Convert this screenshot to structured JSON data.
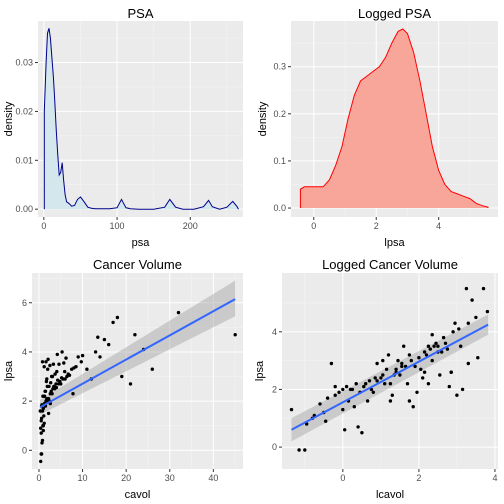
{
  "chart_data": [
    {
      "type": "area",
      "title": "PSA",
      "xlabel": "psa",
      "ylabel": "density",
      "xlim": [
        -8,
        272
      ],
      "ylim": [
        -0.0016,
        0.0385
      ],
      "xticks": [
        0,
        100,
        200
      ],
      "yticks": [
        0.0,
        0.01,
        0.02,
        0.03
      ],
      "ytick_labels": [
        "0.00",
        "0.01",
        "0.02",
        "0.03"
      ],
      "fill_color": "#d3e7ec",
      "line_color": "#00008b",
      "x": [
        0.65,
        3,
        5,
        7,
        9,
        11,
        13,
        15,
        17,
        19,
        21,
        23,
        25,
        27,
        29,
        31,
        34,
        38,
        42,
        46,
        50,
        55,
        60,
        65,
        70,
        80,
        90,
        100,
        106,
        112,
        118,
        130,
        150,
        165,
        172,
        180,
        190,
        205,
        218,
        225,
        230,
        240,
        250,
        258,
        264,
        265.9
      ],
      "y": [
        0.02,
        0.03,
        0.036,
        0.037,
        0.035,
        0.031,
        0.027,
        0.022,
        0.016,
        0.011,
        0.007,
        0.0075,
        0.0095,
        0.006,
        0.003,
        0.0015,
        0.0012,
        0.0006,
        0.0008,
        0.002,
        0.0025,
        0.0015,
        0.0004,
        0.0002,
        0.0001,
        0.0001,
        0.0001,
        0.0003,
        0.002,
        0.0003,
        0.0001,
        0.0,
        0.0,
        0.0004,
        0.002,
        0.0004,
        0.0,
        0.0,
        0.0005,
        0.0018,
        0.0005,
        0.0,
        0.0004,
        0.0016,
        0.0005,
        0.0
      ]
    },
    {
      "type": "area",
      "title": "Logged PSA",
      "xlabel": "lpsa",
      "ylabel": "density",
      "xlim": [
        -0.73,
        5.9
      ],
      "ylim": [
        -0.019,
        0.397
      ],
      "xticks": [
        0,
        2,
        4
      ],
      "yticks": [
        0.0,
        0.1,
        0.2,
        0.3
      ],
      "ytick_labels": [
        "0.0",
        "0.1",
        "0.2",
        "0.3"
      ],
      "fill_color": "#f8a59a",
      "line_color": "#ff0000",
      "x": [
        -0.43,
        -0.3,
        0,
        0.3,
        0.5,
        0.7,
        0.9,
        1.1,
        1.3,
        1.5,
        1.7,
        1.9,
        2.1,
        2.3,
        2.5,
        2.7,
        2.85,
        3.0,
        3.2,
        3.4,
        3.6,
        3.8,
        4.0,
        4.2,
        4.4,
        4.6,
        4.8,
        5.0,
        5.2,
        5.4,
        5.58
      ],
      "y": [
        0.04,
        0.045,
        0.045,
        0.045,
        0.06,
        0.09,
        0.13,
        0.19,
        0.24,
        0.27,
        0.28,
        0.29,
        0.3,
        0.32,
        0.35,
        0.375,
        0.38,
        0.37,
        0.33,
        0.27,
        0.2,
        0.13,
        0.08,
        0.05,
        0.035,
        0.03,
        0.025,
        0.02,
        0.01,
        0.005,
        0.002
      ]
    },
    {
      "type": "scatter",
      "title": "Cancer Volume",
      "xlabel": "cavol",
      "ylabel": "lpsa",
      "xlim": [
        -1.6,
        46.8
      ],
      "ylim": [
        -0.76,
        7.21
      ],
      "xticks": [
        0,
        10,
        20,
        30,
        40
      ],
      "yticks": [
        0,
        2,
        4,
        6
      ],
      "point_color": "#000000",
      "fit_color": "#3366ff",
      "ribbon_color": "#999999",
      "fit": {
        "x": [
          0.26,
          45
        ],
        "y": [
          1.75,
          6.15
        ],
        "lower": [
          1.45,
          5.45
        ],
        "upper": [
          2.05,
          6.9
        ]
      },
      "x": [
        0.4,
        0.5,
        0.6,
        0.7,
        0.8,
        1.0,
        0.9,
        1.2,
        0.5,
        0.6,
        1.1,
        0.3,
        0.8,
        1.0,
        1.5,
        0.7,
        1.3,
        2.0,
        1.6,
        2.4,
        1.8,
        2.2,
        1.1,
        0.9,
        2.6,
        3.0,
        2.8,
        1.4,
        3.2,
        3.6,
        4.0,
        2.3,
        1.9,
        3.4,
        4.5,
        5.0,
        3.9,
        2.7,
        1.7,
        4.8,
        4.3,
        5.5,
        6.0,
        5.2,
        3.1,
        2.9,
        6.4,
        7.0,
        6.7,
        3.7,
        4.1,
        5.9,
        2.0,
        7.5,
        8.0,
        1.2,
        2.5,
        3.3,
        4.6,
        5.7,
        0.8,
        1.6,
        2.1,
        6.2,
        9.0,
        10.0,
        8.5,
        11.0,
        12.0,
        7.8,
        9.7,
        14.0,
        13.0,
        16.0,
        15.0,
        18.0,
        17.0,
        13.5,
        19.0,
        21.0,
        24.0,
        26.0,
        22.0,
        32.0,
        45.0,
        0.5,
        1.0,
        2.2,
        3.5,
        4.2,
        1.3,
        1.8,
        0.6,
        2.6,
        0.4,
        1.5,
        5.3
      ],
      "y": [
        -0.45,
        -0.15,
        -0.15,
        0.3,
        0.4,
        0.8,
        1.0,
        1.1,
        1.2,
        1.3,
        1.4,
        1.6,
        1.6,
        1.7,
        1.8,
        1.85,
        1.9,
        2.0,
        2.0,
        2.0,
        2.1,
        2.1,
        2.2,
        2.2,
        2.3,
        2.3,
        2.4,
        2.4,
        2.5,
        2.5,
        2.55,
        2.6,
        2.6,
        2.6,
        2.7,
        2.7,
        2.7,
        2.75,
        2.8,
        2.8,
        2.85,
        2.9,
        2.9,
        2.95,
        3.0,
        3.0,
        3.0,
        3.05,
        3.1,
        3.1,
        3.2,
        3.2,
        3.3,
        3.3,
        3.35,
        3.4,
        3.45,
        3.5,
        3.5,
        3.55,
        3.6,
        3.6,
        3.7,
        3.75,
        3.8,
        3.85,
        3.4,
        3.3,
        2.9,
        2.3,
        3.6,
        3.8,
        4.0,
        4.3,
        4.5,
        5.4,
        5.2,
        4.6,
        3.0,
        2.7,
        4.1,
        3.3,
        4.7,
        5.6,
        4.7,
        0.7,
        1.0,
        1.5,
        2.6,
        3.9,
        2.2,
        2.9,
        1.8,
        1.9,
        0.9,
        2.4,
        4.0
      ]
    },
    {
      "type": "scatter",
      "title": "Logged Cancer Volume",
      "xlabel": "lcavol",
      "ylabel": "lpsa",
      "xlim": [
        -1.6,
        4.08
      ],
      "ylim": [
        -0.76,
        6.04
      ],
      "xticks": [
        0,
        2,
        4
      ],
      "yticks": [
        0,
        2,
        4
      ],
      "point_color": "#000000",
      "fit_color": "#3366ff",
      "ribbon_color": "#999999",
      "fit": {
        "x": [
          -1.35,
          3.82
        ],
        "y": [
          0.6,
          4.25
        ],
        "lower": [
          0.2,
          3.9
        ],
        "upper": [
          1.0,
          4.6
        ]
      },
      "x": [
        -1.35,
        -1.15,
        -1.0,
        -0.95,
        -0.8,
        -0.75,
        -0.6,
        -0.5,
        -0.4,
        -0.3,
        -0.2,
        -0.1,
        0.0,
        0.1,
        0.2,
        0.3,
        0.4,
        0.5,
        0.55,
        0.6,
        0.7,
        0.75,
        0.8,
        0.9,
        1.0,
        1.05,
        1.1,
        1.2,
        1.25,
        1.3,
        1.35,
        1.4,
        1.45,
        1.5,
        1.55,
        1.6,
        1.7,
        1.75,
        1.8,
        1.85,
        1.9,
        2.0,
        2.05,
        2.1,
        2.2,
        2.25,
        2.3,
        2.35,
        2.4,
        2.5,
        2.55,
        2.6,
        2.7,
        2.75,
        2.8,
        2.85,
        2.9,
        3.0,
        3.1,
        3.15,
        3.25,
        3.3,
        3.5,
        3.8,
        0.25,
        0.65,
        1.15,
        1.65,
        2.15,
        2.45,
        2.65,
        0.0,
        0.45,
        1.25,
        1.95,
        2.5,
        3.05,
        -0.45,
        0.15,
        0.85,
        1.55,
        2.15,
        2.85,
        3.4,
        -0.2,
        0.35,
        1.05,
        1.75,
        2.35,
        3.3,
        0.05,
        1.4,
        2.25,
        2.95,
        3.55,
        3.7,
        0.9
      ],
      "y": [
        1.3,
        -0.1,
        -0.1,
        0.8,
        1.0,
        1.1,
        1.5,
        1.2,
        1.7,
        2.9,
        1.8,
        1.9,
        2.0,
        2.1,
        2.0,
        1.4,
        0.7,
        0.5,
        2.1,
        2.2,
        2.3,
        2.0,
        1.9,
        2.3,
        2.4,
        2.5,
        2.2,
        3.2,
        1.6,
        1.8,
        2.5,
        2.7,
        3.0,
        2.5,
        2.8,
        3.5,
        2.2,
        1.6,
        3.0,
        1.4,
        2.8,
        3.1,
        2.7,
        2.4,
        3.2,
        3.5,
        3.4,
        3.0,
        3.5,
        3.5,
        2.5,
        3.3,
        3.6,
        3.4,
        2.1,
        2.6,
        4.0,
        1.8,
        3.5,
        2.0,
        5.5,
        4.3,
        4.5,
        4.7,
        2.0,
        1.6,
        2.7,
        2.8,
        3.3,
        3.6,
        3.8,
        1.3,
        1.9,
        2.2,
        1.9,
        3.3,
        4.1,
        0.9,
        1.6,
        2.4,
        2.9,
        2.6,
        2.6,
        5.1,
        2.1,
        2.2,
        3.0,
        3.2,
        3.9,
        2.9,
        0.6,
        2.6,
        2.2,
        4.3,
        3.1,
        5.5,
        2.9
      ]
    }
  ]
}
